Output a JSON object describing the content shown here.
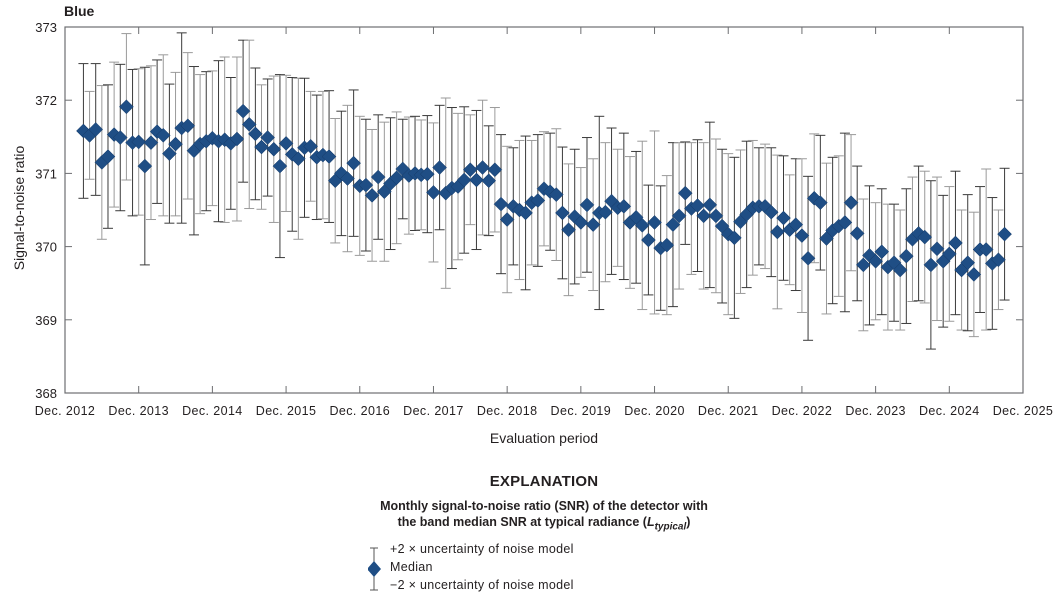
{
  "panel_title": "Blue",
  "chart_data": {
    "type": "scatter",
    "title": "Blue",
    "xlabel": "Evaluation period",
    "ylabel": "Signal-to-noise ratio",
    "ylim": [
      368,
      373
    ],
    "yticks": [
      368,
      369,
      370,
      371,
      372,
      373
    ],
    "xticks": [
      "Dec. 2012",
      "Dec. 2013",
      "Dec. 2014",
      "Dec. 2015",
      "Dec. 2016",
      "Dec. 2017",
      "Dec. 2018",
      "Dec. 2019",
      "Dec. 2020",
      "Dec. 2021",
      "Dec. 2022",
      "Dec. 2023",
      "Dec. 2024",
      "Dec. 2025"
    ],
    "x_start": "Mar. 2013",
    "x_step": "monthly",
    "grid": false,
    "marker": "diamond",
    "marker_color": "#1f4e85",
    "errorbar_color": "#555555",
    "series": [
      {
        "name": "Median",
        "values": [
          371.58,
          371.52,
          371.6,
          371.15,
          371.23,
          371.53,
          371.49,
          371.91,
          371.42,
          371.43,
          371.1,
          371.42,
          371.57,
          371.52,
          371.27,
          371.4,
          371.62,
          371.65,
          371.31,
          371.4,
          371.44,
          371.48,
          371.44,
          371.46,
          371.41,
          371.47,
          371.85,
          371.67,
          371.54,
          371.36,
          371.49,
          371.33,
          371.1,
          371.41,
          371.26,
          371.2,
          371.35,
          371.37,
          371.22,
          371.25,
          371.23,
          370.9,
          371.0,
          370.93,
          371.14,
          370.83,
          370.84,
          370.7,
          370.95,
          370.75,
          370.86,
          370.94,
          371.06,
          370.97,
          371.0,
          370.98,
          370.99,
          370.74,
          371.08,
          370.73,
          370.8,
          370.82,
          370.91,
          371.05,
          370.91,
          371.08,
          370.9,
          371.05,
          370.58,
          370.37,
          370.55,
          370.5,
          370.46,
          370.6,
          370.63,
          370.79,
          370.75,
          370.71,
          370.46,
          370.23,
          370.41,
          370.33,
          370.57,
          370.3,
          370.46,
          370.47,
          370.62,
          370.53,
          370.55,
          370.33,
          370.4,
          370.29,
          370.09,
          370.33,
          369.98,
          370.02,
          370.3,
          370.42,
          370.73,
          370.52,
          370.56,
          370.42,
          370.57,
          370.42,
          370.28,
          370.17,
          370.12,
          370.34,
          370.44,
          370.53,
          370.55,
          370.55,
          370.47,
          370.2,
          370.39,
          370.23,
          370.3,
          370.15,
          369.84,
          370.66,
          370.6,
          370.11,
          370.22,
          370.28,
          370.33,
          370.6,
          370.18,
          369.75,
          369.88,
          369.8,
          369.93,
          369.72,
          369.78,
          369.68,
          369.87,
          370.1,
          370.18,
          370.13,
          369.75,
          369.97,
          369.8,
          369.9,
          370.05,
          369.68,
          369.78,
          369.62,
          369.96,
          369.96,
          369.77,
          369.82,
          370.17
        ]
      },
      {
        "name": "Uncertainty (2x, half-range)",
        "values": [
          0.92,
          0.6,
          0.9,
          1.05,
          0.98,
          0.99,
          1.0,
          1.0,
          1.0,
          1.0,
          1.35,
          1.05,
          0.98,
          1.1,
          0.95,
          0.98,
          1.3,
          1.0,
          1.15,
          0.95,
          0.95,
          0.92,
          1.1,
          1.13,
          0.9,
          1.12,
          0.97,
          1.15,
          0.9,
          0.85,
          0.8,
          1.0,
          1.25,
          0.93,
          1.05,
          1.1,
          0.95,
          0.75,
          0.85,
          0.87,
          0.9,
          0.85,
          0.85,
          1.0,
          1.0,
          0.95,
          0.9,
          0.9,
          0.85,
          0.95,
          0.9,
          0.9,
          0.68,
          0.8,
          0.78,
          0.75,
          0.8,
          0.95,
          0.85,
          1.3,
          1.1,
          1.0,
          1.0,
          0.75,
          0.95,
          0.92,
          0.75,
          0.85,
          0.95,
          1.0,
          0.8,
          0.95,
          1.05,
          0.85,
          0.9,
          0.78,
          0.8,
          0.9,
          0.9,
          0.9,
          0.92,
          0.75,
          0.92,
          0.9,
          1.32,
          0.95,
          1.0,
          0.8,
          1.0,
          0.9,
          0.9,
          1.15,
          0.75,
          1.25,
          0.85,
          0.95,
          1.12,
          1.0,
          0.7,
          0.9,
          0.9,
          1.0,
          1.13,
          1.05,
          1.05,
          1.1,
          1.1,
          0.98,
          1.0,
          0.92,
          0.8,
          0.85,
          0.88,
          1.05,
          0.85,
          0.75,
          0.9,
          1.05,
          1.12,
          0.88,
          0.92,
          1.03,
          1.0,
          0.96,
          1.22,
          0.93,
          0.92,
          0.9,
          0.95,
          0.8,
          0.86,
          0.86,
          0.8,
          0.82,
          0.92,
          0.85,
          0.92,
          0.9,
          1.15,
          0.98,
          0.9,
          0.92,
          0.98,
          0.82,
          0.93,
          0.85,
          0.86,
          1.1,
          0.9,
          0.68
        ]
      }
    ]
  },
  "axes": {
    "xlabel": "Evaluation period",
    "ylabel": "Signal-to-noise ratio",
    "yticks": [
      "368",
      "369",
      "370",
      "371",
      "372",
      "373"
    ],
    "xticks": [
      "Dec. 2012",
      "Dec. 2013",
      "Dec. 2014",
      "Dec. 2015",
      "Dec. 2016",
      "Dec. 2017",
      "Dec. 2018",
      "Dec. 2019",
      "Dec. 2020",
      "Dec. 2021",
      "Dec. 2022",
      "Dec. 2023",
      "Dec. 2024",
      "Dec. 2025"
    ]
  },
  "legend": {
    "title": "EXPLANATION",
    "subtitle_line1": "Monthly signal-to-noise ratio (SNR) of the detector with",
    "subtitle_line2_prefix": "the band median SNR at typical radiance (",
    "subtitle_L": "L",
    "subtitle_sub": "typical",
    "subtitle_suffix": ")",
    "items": [
      {
        "label": "+2 × uncertainty of noise model"
      },
      {
        "label": "Median"
      },
      {
        "label": "−2 × uncertainty of noise model"
      }
    ]
  }
}
